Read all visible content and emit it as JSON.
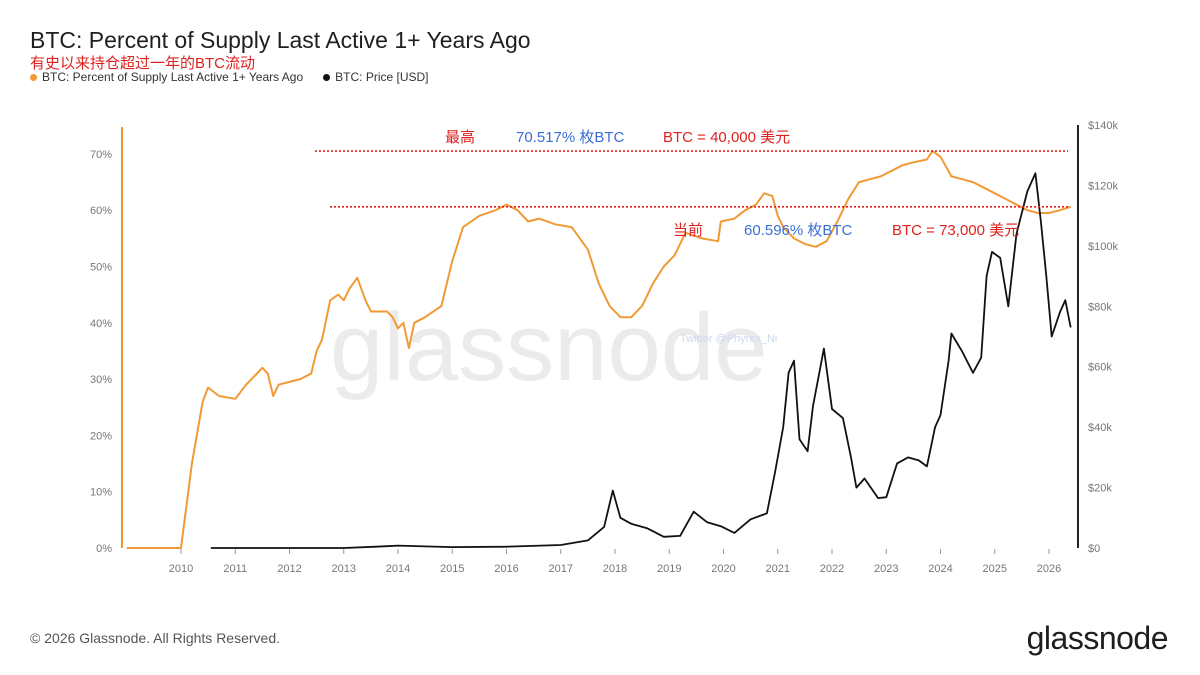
{
  "header": {
    "title": "BTC: Percent of Supply Last Active 1+ Years Ago",
    "subtitle": "有史以来持仓超过一年的BTC流动"
  },
  "legend": [
    {
      "label": "BTC: Percent of Supply Last Active 1+ Years Ago",
      "color": "#f09a36"
    },
    {
      "label": "BTC: Price [USD]",
      "color": "#111111"
    }
  ],
  "footer": {
    "copyright": "© 2026 Glassnode. All Rights Reserved.",
    "logo": "glassnode"
  },
  "watermark": {
    "text": "glassnode",
    "twitter": "Twitter @Phyrex_Ni"
  },
  "annotations": {
    "high": {
      "label": "最高",
      "pct": "70.517% 枚BTC",
      "price": "BTC = 40,000 美元"
    },
    "current": {
      "label": "当前",
      "pct": "60.596% 枚BTC",
      "price": "BTC = 73,000 美元"
    },
    "colors": {
      "red": "#e0201e",
      "blue": "#3b6fd8"
    }
  },
  "chart_data": {
    "type": "line",
    "title": "BTC: Percent of Supply Last Active 1+ Years Ago",
    "x_ticks": [
      "2010",
      "2011",
      "2012",
      "2013",
      "2014",
      "2015",
      "2016",
      "2017",
      "2018",
      "2019",
      "2020",
      "2021",
      "2022",
      "2023",
      "2024",
      "2025",
      "2026"
    ],
    "y_left": {
      "ticks": [
        "0%",
        "10%",
        "20%",
        "30%",
        "40%",
        "50%",
        "60%",
        "70%"
      ],
      "range": [
        0,
        77
      ]
    },
    "y_right": {
      "ticks": [
        "$0",
        "$20k",
        "$40k",
        "$60k",
        "$80k",
        "$100k",
        "$120k",
        "$140k"
      ],
      "range": [
        0,
        140000
      ]
    },
    "reference_lines": [
      70.5,
      60.6
    ],
    "series": [
      {
        "name": "BTC: Percent of Supply Last Active 1+ Years Ago",
        "axis": "left",
        "points": [
          [
            2009.0,
            0
          ],
          [
            2010.0,
            0
          ],
          [
            2010.2,
            15
          ],
          [
            2010.4,
            26
          ],
          [
            2010.5,
            28.5
          ],
          [
            2010.7,
            27
          ],
          [
            2011.0,
            26.5
          ],
          [
            2011.2,
            29
          ],
          [
            2011.4,
            31
          ],
          [
            2011.5,
            32
          ],
          [
            2011.6,
            31
          ],
          [
            2011.7,
            27
          ],
          [
            2011.8,
            29
          ],
          [
            2012.0,
            29.5
          ],
          [
            2012.2,
            30
          ],
          [
            2012.4,
            31
          ],
          [
            2012.5,
            35
          ],
          [
            2012.6,
            37
          ],
          [
            2012.75,
            44
          ],
          [
            2012.9,
            45
          ],
          [
            2013.0,
            44
          ],
          [
            2013.1,
            46
          ],
          [
            2013.25,
            48
          ],
          [
            2013.4,
            44
          ],
          [
            2013.5,
            42
          ],
          [
            2013.8,
            42
          ],
          [
            2013.9,
            41
          ],
          [
            2014.0,
            39
          ],
          [
            2014.1,
            40
          ],
          [
            2014.2,
            35.5
          ],
          [
            2014.3,
            40
          ],
          [
            2014.5,
            41
          ],
          [
            2014.8,
            43
          ],
          [
            2015.0,
            51
          ],
          [
            2015.2,
            57
          ],
          [
            2015.5,
            59
          ],
          [
            2015.8,
            60
          ],
          [
            2016.0,
            61
          ],
          [
            2016.2,
            60
          ],
          [
            2016.4,
            58
          ],
          [
            2016.6,
            58.5
          ],
          [
            2016.9,
            57.5
          ],
          [
            2017.2,
            57
          ],
          [
            2017.5,
            53
          ],
          [
            2017.7,
            47
          ],
          [
            2017.9,
            43
          ],
          [
            2018.1,
            41
          ],
          [
            2018.3,
            41
          ],
          [
            2018.5,
            43
          ],
          [
            2018.7,
            47
          ],
          [
            2018.9,
            50
          ],
          [
            2019.1,
            52
          ],
          [
            2019.3,
            56
          ],
          [
            2019.6,
            55
          ],
          [
            2019.9,
            54.5
          ],
          [
            2019.95,
            58
          ],
          [
            2020.2,
            58.5
          ],
          [
            2020.4,
            60
          ],
          [
            2020.6,
            61
          ],
          [
            2020.75,
            63
          ],
          [
            2020.9,
            62.5
          ],
          [
            2021.0,
            59
          ],
          [
            2021.1,
            57
          ],
          [
            2021.3,
            55
          ],
          [
            2021.5,
            54
          ],
          [
            2021.7,
            53.5
          ],
          [
            2021.9,
            54.5
          ],
          [
            2022.1,
            58
          ],
          [
            2022.3,
            62
          ],
          [
            2022.5,
            65
          ],
          [
            2022.7,
            65.5
          ],
          [
            2022.9,
            66
          ],
          [
            2023.1,
            67
          ],
          [
            2023.3,
            68
          ],
          [
            2023.5,
            68.5
          ],
          [
            2023.75,
            69
          ],
          [
            2023.85,
            70.5
          ],
          [
            2024.0,
            69.5
          ],
          [
            2024.2,
            66
          ],
          [
            2024.4,
            65.5
          ],
          [
            2024.6,
            65
          ],
          [
            2024.8,
            64
          ],
          [
            2025.0,
            63
          ],
          [
            2025.2,
            62
          ],
          [
            2025.4,
            61
          ],
          [
            2025.6,
            60
          ],
          [
            2025.8,
            59.5
          ],
          [
            2026.0,
            59.5
          ],
          [
            2026.2,
            60
          ],
          [
            2026.4,
            60.6
          ]
        ]
      },
      {
        "name": "BTC: Price [USD]",
        "axis": "right",
        "points": [
          [
            2010.55,
            0.1
          ],
          [
            2013.0,
            13
          ],
          [
            2013.8,
            600
          ],
          [
            2014.0,
            800
          ],
          [
            2015.0,
            300
          ],
          [
            2016.0,
            430
          ],
          [
            2017.0,
            1000
          ],
          [
            2017.5,
            2500
          ],
          [
            2017.8,
            7000
          ],
          [
            2017.96,
            19000
          ],
          [
            2018.1,
            10000
          ],
          [
            2018.3,
            8000
          ],
          [
            2018.6,
            6500
          ],
          [
            2018.9,
            3700
          ],
          [
            2019.2,
            4000
          ],
          [
            2019.45,
            12000
          ],
          [
            2019.7,
            8500
          ],
          [
            2019.95,
            7200
          ],
          [
            2020.2,
            5000
          ],
          [
            2020.5,
            9500
          ],
          [
            2020.8,
            11500
          ],
          [
            2020.95,
            25000
          ],
          [
            2021.1,
            40000
          ],
          [
            2021.2,
            58000
          ],
          [
            2021.3,
            62000
          ],
          [
            2021.4,
            36000
          ],
          [
            2021.55,
            32000
          ],
          [
            2021.65,
            47000
          ],
          [
            2021.85,
            66000
          ],
          [
            2022.0,
            46000
          ],
          [
            2022.2,
            43000
          ],
          [
            2022.35,
            30000
          ],
          [
            2022.45,
            20000
          ],
          [
            2022.6,
            23000
          ],
          [
            2022.85,
            16500
          ],
          [
            2023.0,
            16800
          ],
          [
            2023.2,
            28000
          ],
          [
            2023.4,
            30000
          ],
          [
            2023.6,
            29000
          ],
          [
            2023.75,
            27000
          ],
          [
            2023.9,
            40000
          ],
          [
            2024.0,
            44000
          ],
          [
            2024.15,
            62000
          ],
          [
            2024.2,
            71000
          ],
          [
            2024.4,
            65000
          ],
          [
            2024.6,
            58000
          ],
          [
            2024.75,
            63000
          ],
          [
            2024.85,
            90000
          ],
          [
            2024.95,
            98000
          ],
          [
            2025.1,
            96000
          ],
          [
            2025.25,
            80000
          ],
          [
            2025.4,
            104000
          ],
          [
            2025.6,
            118000
          ],
          [
            2025.75,
            124000
          ],
          [
            2025.85,
            108000
          ],
          [
            2025.95,
            90000
          ],
          [
            2026.05,
            70000
          ],
          [
            2026.2,
            78000
          ],
          [
            2026.3,
            82000
          ],
          [
            2026.4,
            73000
          ]
        ]
      }
    ]
  }
}
